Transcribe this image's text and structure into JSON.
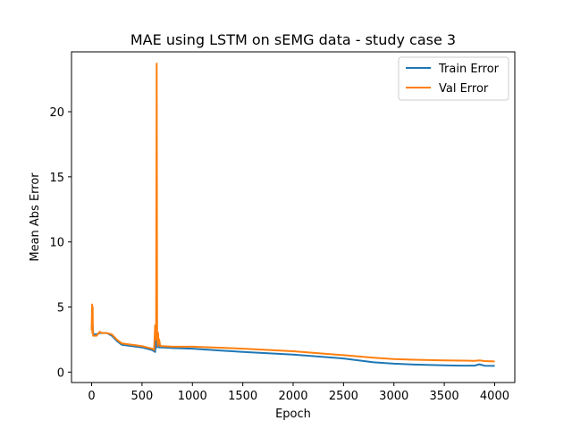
{
  "chart_data": {
    "type": "line",
    "title": "MAE using LSTM on sEMG data - study case 3",
    "xlabel": "Epoch",
    "ylabel": "Mean Abs Error",
    "xlim": [
      -200,
      4200
    ],
    "ylim": [
      -0.8,
      24.6
    ],
    "x_ticks": [
      0,
      500,
      1000,
      1500,
      2000,
      2500,
      3000,
      3500,
      4000
    ],
    "x_tick_labels": [
      "0",
      "500",
      "1000",
      "1500",
      "2000",
      "2500",
      "3000",
      "3500",
      "4000"
    ],
    "y_ticks": [
      0,
      5,
      10,
      15,
      20
    ],
    "y_tick_labels": [
      "0",
      "5",
      "10",
      "15",
      "20"
    ],
    "grid": false,
    "legend": {
      "placement": "top-right"
    },
    "series": [
      {
        "name": "Train Error",
        "color": "#1f77b4",
        "x": [
          0,
          5,
          10,
          15,
          20,
          30,
          50,
          80,
          100,
          150,
          200,
          250,
          300,
          400,
          500,
          550,
          600,
          620,
          630,
          640,
          650,
          660,
          670,
          700,
          800,
          1000,
          1200,
          1500,
          2000,
          2500,
          2800,
          3000,
          3200,
          3500,
          3700,
          3800,
          3850,
          3900,
          4000
        ],
        "y": [
          3.5,
          3.3,
          3.6,
          3.0,
          2.9,
          2.9,
          2.9,
          3.0,
          3.0,
          3.0,
          2.8,
          2.4,
          2.1,
          2.0,
          1.9,
          1.8,
          1.7,
          1.6,
          1.55,
          2.8,
          1.9,
          2.5,
          1.9,
          1.9,
          1.85,
          1.8,
          1.7,
          1.55,
          1.35,
          1.05,
          0.75,
          0.65,
          0.58,
          0.52,
          0.5,
          0.5,
          0.6,
          0.49,
          0.48
        ]
      },
      {
        "name": "Val Error",
        "color": "#ff7f0e",
        "x": [
          0,
          5,
          8,
          10,
          12,
          15,
          20,
          30,
          50,
          80,
          100,
          150,
          200,
          250,
          300,
          400,
          500,
          550,
          600,
          620,
          630,
          635,
          640,
          645,
          650,
          655,
          660,
          665,
          670,
          680,
          700,
          800,
          1000,
          1200,
          1500,
          2000,
          2500,
          2800,
          3000,
          3200,
          3500,
          3700,
          3800,
          3850,
          3900,
          4000
        ],
        "y": [
          3.2,
          5.2,
          3.0,
          5.0,
          3.0,
          2.8,
          2.8,
          2.8,
          2.8,
          3.1,
          3.0,
          3.0,
          2.9,
          2.5,
          2.2,
          2.1,
          2.0,
          1.9,
          1.8,
          1.7,
          3.6,
          2.5,
          3.2,
          23.7,
          3.1,
          2.0,
          3.0,
          2.2,
          2.5,
          2.0,
          2.0,
          1.95,
          1.95,
          1.9,
          1.8,
          1.6,
          1.3,
          1.1,
          1.0,
          0.95,
          0.9,
          0.88,
          0.86,
          0.9,
          0.85,
          0.82
        ]
      }
    ]
  }
}
